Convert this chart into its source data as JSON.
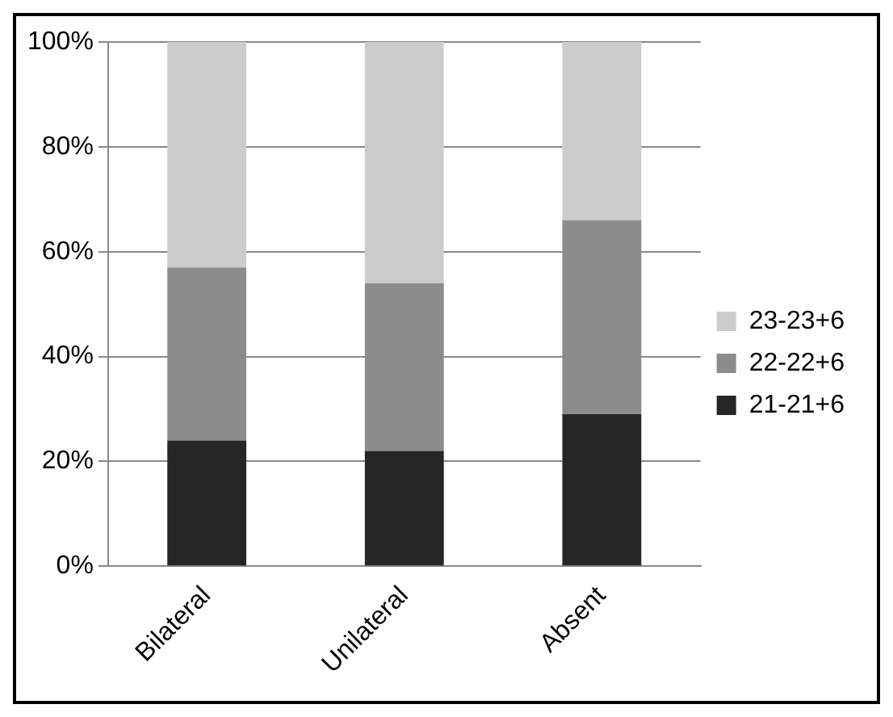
{
  "chart_data": {
    "type": "bar",
    "stacked": true,
    "categories": [
      "Bilateral",
      "Unilateral",
      "Absent"
    ],
    "series": [
      {
        "name": "21-21+6",
        "color": "#262626",
        "values": [
          24,
          22,
          29
        ]
      },
      {
        "name": "22-22+6",
        "color": "#8c8c8c",
        "values": [
          33,
          32,
          37
        ]
      },
      {
        "name": "23-23+6",
        "color": "#cccccc",
        "values": [
          43,
          46,
          34
        ]
      }
    ],
    "ylim": [
      0,
      100
    ],
    "yticks": [
      {
        "value": 0,
        "label": "0%"
      },
      {
        "value": 20,
        "label": "20%"
      },
      {
        "value": 40,
        "label": "40%"
      },
      {
        "value": 60,
        "label": "60%"
      },
      {
        "value": 80,
        "label": "80%"
      },
      {
        "value": 100,
        "label": "100%"
      }
    ],
    "grid": "y",
    "legend": "right"
  }
}
